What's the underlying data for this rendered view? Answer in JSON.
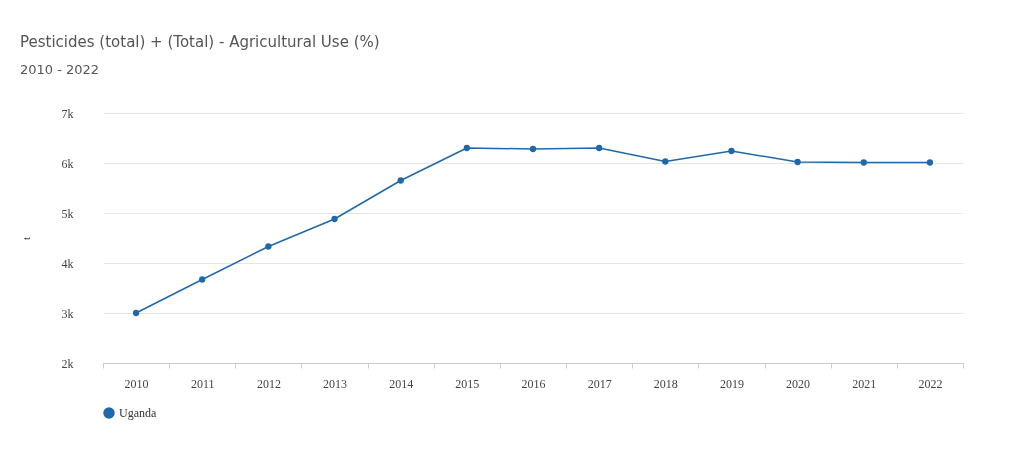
{
  "chart_data": {
    "type": "line",
    "title": "Pesticides (total) + (Total) - Agricultural Use (%)",
    "subtitle": "2010 - 2022",
    "ylabel": "t",
    "categories": [
      "2010",
      "2011",
      "2012",
      "2013",
      "2014",
      "2015",
      "2016",
      "2017",
      "2018",
      "2019",
      "2020",
      "2021",
      "2022"
    ],
    "series": [
      {
        "name": "Uganda",
        "color": "#1f69a8",
        "values": [
          3000,
          3670,
          4330,
          4880,
          5650,
          6300,
          6280,
          6300,
          6030,
          6240,
          6020,
          6010,
          6010
        ]
      }
    ],
    "ylim": [
      2000,
      7000
    ],
    "yticks": [
      {
        "value": 2000,
        "label": "2k"
      },
      {
        "value": 3000,
        "label": "3k"
      },
      {
        "value": 4000,
        "label": "4k"
      },
      {
        "value": 5000,
        "label": "5k"
      },
      {
        "value": 6000,
        "label": "6k"
      },
      {
        "value": 7000,
        "label": "7k"
      }
    ],
    "grid": "y",
    "legend": "bottom",
    "marker": "circle",
    "line_style": "solid"
  }
}
